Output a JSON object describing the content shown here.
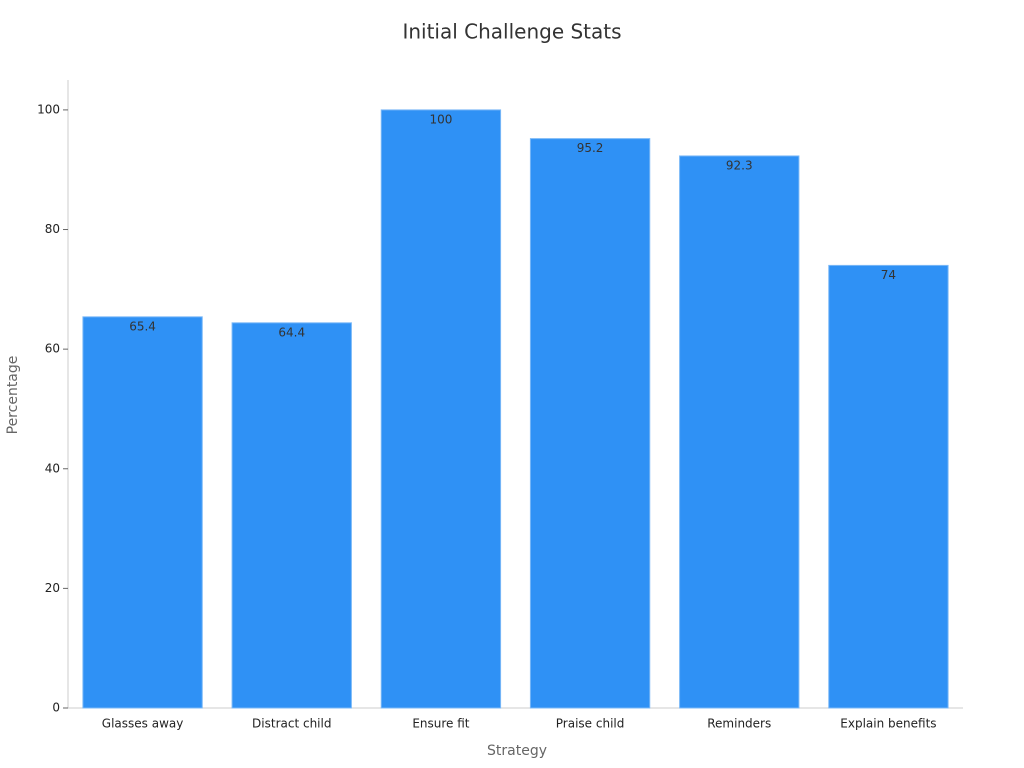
{
  "chart_data": {
    "type": "bar",
    "title": "Initial Challenge Stats",
    "x_label": "Strategy",
    "y_label": "Percentage",
    "categories": [
      "Glasses away",
      "Distract child",
      "Ensure fit",
      "Praise child",
      "Reminders",
      "Explain benefits"
    ],
    "values": [
      65.4,
      64.4,
      100,
      95.2,
      92.3,
      74
    ],
    "color": "#2f91f5",
    "ylim": [
      0,
      105
    ],
    "yticks": [
      0,
      20,
      40,
      60,
      80,
      100
    ],
    "grid": false
  }
}
